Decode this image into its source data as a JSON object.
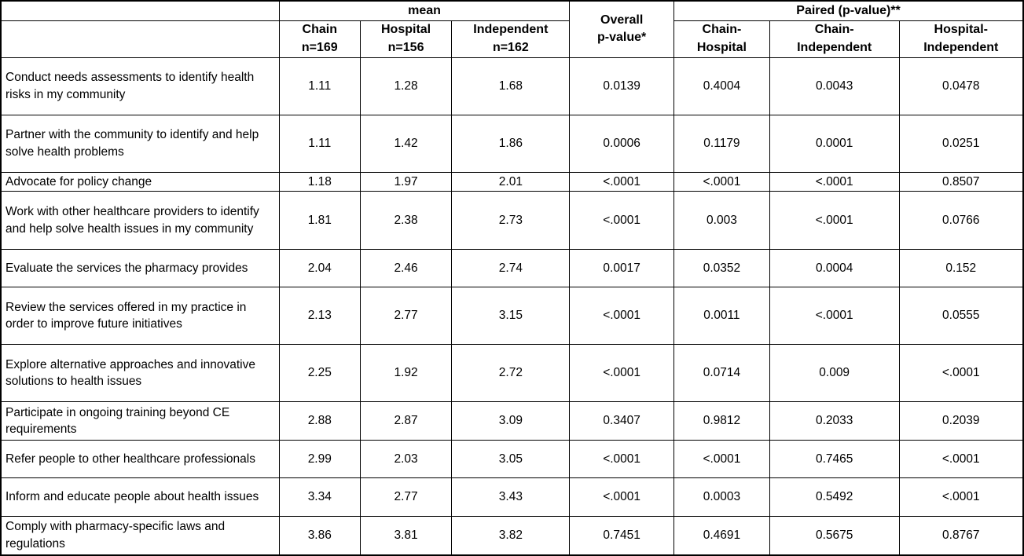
{
  "table": {
    "header": {
      "mean_label": "mean",
      "overall": {
        "line1": "Overall",
        "line2": "p-value*"
      },
      "paired_label": "Paired (p-value)**",
      "mean_columns": [
        {
          "line1": "Chain",
          "line2": "n=169"
        },
        {
          "line1": "Hospital",
          "line2": "n=156"
        },
        {
          "line1": "Independent",
          "line2": "n=162"
        }
      ],
      "paired_columns": [
        {
          "line1": "Chain-",
          "line2": "Hospital"
        },
        {
          "line1": "Chain-",
          "line2": "Independent"
        },
        {
          "line1": "Hospital-",
          "line2": "Independent"
        }
      ]
    },
    "rows": [
      {
        "item": "Conduct needs assessments to identify health risks in my community",
        "chain": "1.11",
        "hospital": "1.28",
        "independent": "1.68",
        "overall": "0.0139",
        "chain_hospital": "0.4004",
        "chain_independent": "0.0043",
        "hospital_independent": "0.0478"
      },
      {
        "item": "Partner with the community to identify and help solve health problems",
        "chain": "1.11",
        "hospital": "1.42",
        "independent": "1.86",
        "overall": "0.0006",
        "chain_hospital": "0.1179",
        "chain_independent": "0.0001",
        "hospital_independent": "0.0251"
      },
      {
        "item": "Advocate for policy change",
        "chain": "1.18",
        "hospital": "1.97",
        "independent": "2.01",
        "overall": "<.0001",
        "chain_hospital": "<.0001",
        "chain_independent": "<.0001",
        "hospital_independent": "0.8507"
      },
      {
        "item": "Work with other healthcare providers to identify and help solve health issues in my community",
        "chain": "1.81",
        "hospital": "2.38",
        "independent": "2.73",
        "overall": "<.0001",
        "chain_hospital": "0.003",
        "chain_independent": "<.0001",
        "hospital_independent": "0.0766"
      },
      {
        "item": "Evaluate the services the pharmacy provides",
        "chain": "2.04",
        "hospital": "2.46",
        "independent": "2.74",
        "overall": "0.0017",
        "chain_hospital": "0.0352",
        "chain_independent": "0.0004",
        "hospital_independent": "0.152"
      },
      {
        "item": "Review the services offered in my practice in order to improve future initiatives",
        "chain": "2.13",
        "hospital": "2.77",
        "independent": "3.15",
        "overall": "<.0001",
        "chain_hospital": "0.0011",
        "chain_independent": "<.0001",
        "hospital_independent": "0.0555"
      },
      {
        "item": "Explore alternative approaches and innovative solutions to health issues",
        "chain": "2.25",
        "hospital": "1.92",
        "independent": "2.72",
        "overall": "<.0001",
        "chain_hospital": "0.0714",
        "chain_independent": "0.009",
        "hospital_independent": "<.0001"
      },
      {
        "item": "Participate in ongoing training beyond CE requirements",
        "chain": "2.88",
        "hospital": "2.87",
        "independent": "3.09",
        "overall": "0.3407",
        "chain_hospital": "0.9812",
        "chain_independent": "0.2033",
        "hospital_independent": "0.2039"
      },
      {
        "item": "Refer people to other healthcare professionals",
        "chain": "2.99",
        "hospital": "2.03",
        "independent": "3.05",
        "overall": "<.0001",
        "chain_hospital": "<.0001",
        "chain_independent": "0.7465",
        "hospital_independent": "<.0001"
      },
      {
        "item": "Inform and educate people about health issues",
        "chain": "3.34",
        "hospital": "2.77",
        "independent": "3.43",
        "overall": "<.0001",
        "chain_hospital": "0.0003",
        "chain_independent": "0.5492",
        "hospital_independent": "<.0001"
      },
      {
        "item": "Comply with pharmacy-specific laws and regulations",
        "chain": "3.86",
        "hospital": "3.81",
        "independent": "3.82",
        "overall": "0.7451",
        "chain_hospital": "0.4691",
        "chain_independent": "0.5675",
        "hospital_independent": "0.8767"
      }
    ]
  }
}
